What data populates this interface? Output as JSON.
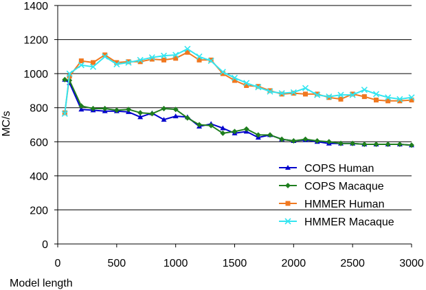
{
  "chart_data": {
    "type": "line",
    "title": "",
    "xlabel": "Model length",
    "ylabel": "MC/s",
    "xlim": [
      0,
      3000
    ],
    "ylim": [
      0,
      1400
    ],
    "xticks": [
      0,
      500,
      1000,
      1500,
      2000,
      2500,
      3000
    ],
    "yticks": [
      0,
      200,
      400,
      600,
      800,
      1000,
      1200,
      1400
    ],
    "grid": "horizontal",
    "legend_position": "bottom-right",
    "series": [
      {
        "name": "COPS Human",
        "color": "#0000CC",
        "marker": "triangle",
        "x": [
          60,
          100,
          200,
          300,
          400,
          500,
          600,
          700,
          800,
          900,
          1000,
          1100,
          1200,
          1300,
          1400,
          1500,
          1600,
          1700,
          1800,
          1900,
          2000,
          2100,
          2200,
          2300,
          2400,
          2500,
          2600,
          2700,
          2800,
          2900,
          3000
        ],
        "values": [
          965,
          945,
          790,
          785,
          780,
          780,
          775,
          745,
          768,
          730,
          750,
          745,
          690,
          705,
          680,
          650,
          660,
          625,
          640,
          615,
          605,
          610,
          600,
          590,
          590,
          590,
          585,
          585,
          585,
          585,
          580
        ]
      },
      {
        "name": "COPS Macaque",
        "color": "#1E7E1E",
        "marker": "diamond",
        "x": [
          60,
          100,
          200,
          300,
          400,
          500,
          600,
          700,
          800,
          900,
          1000,
          1100,
          1200,
          1300,
          1400,
          1500,
          1600,
          1700,
          1800,
          1900,
          2000,
          2100,
          2200,
          2300,
          2400,
          2500,
          2600,
          2700,
          2800,
          2900,
          3000
        ],
        "values": [
          965,
          960,
          810,
          795,
          795,
          785,
          790,
          770,
          765,
          795,
          790,
          740,
          700,
          695,
          650,
          660,
          675,
          640,
          640,
          615,
          605,
          615,
          605,
          600,
          590,
          590,
          585,
          585,
          585,
          585,
          580
        ]
      },
      {
        "name": "HMMER Human",
        "color": "#F07820",
        "marker": "square",
        "x": [
          60,
          100,
          200,
          300,
          400,
          500,
          600,
          700,
          800,
          900,
          1000,
          1100,
          1200,
          1300,
          1400,
          1500,
          1600,
          1700,
          1800,
          1900,
          2000,
          2100,
          2200,
          2300,
          2400,
          2500,
          2600,
          2700,
          2800,
          2900,
          3000
        ],
        "values": [
          770,
          985,
          1075,
          1065,
          1110,
          1065,
          1070,
          1070,
          1085,
          1080,
          1090,
          1125,
          1080,
          1080,
          1000,
          960,
          930,
          925,
          900,
          880,
          885,
          880,
          880,
          860,
          850,
          880,
          865,
          845,
          840,
          840,
          845
        ]
      },
      {
        "name": "HMMER Macaque",
        "color": "#33E5F0",
        "marker": "x",
        "x": [
          60,
          100,
          200,
          300,
          400,
          500,
          600,
          700,
          800,
          900,
          1000,
          1100,
          1200,
          1300,
          1400,
          1500,
          1600,
          1700,
          1800,
          1900,
          2000,
          2100,
          2200,
          2300,
          2400,
          2500,
          2600,
          2700,
          2800,
          2900,
          3000
        ],
        "values": [
          765,
          1000,
          1050,
          1040,
          1100,
          1055,
          1065,
          1080,
          1095,
          1105,
          1110,
          1145,
          1100,
          1075,
          1010,
          975,
          945,
          920,
          895,
          885,
          890,
          915,
          875,
          865,
          875,
          875,
          905,
          880,
          860,
          850,
          860
        ]
      }
    ]
  }
}
